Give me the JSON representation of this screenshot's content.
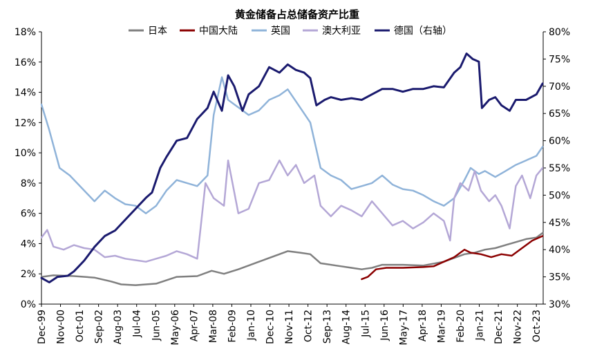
{
  "chart_data": {
    "type": "line",
    "title": "黄金储备占总储备资产比重",
    "x_labels": [
      "Dec-99",
      "Nov-00",
      "Oct-01",
      "Sep-02",
      "Aug-03",
      "Jul-04",
      "Jun-05",
      "May-06",
      "Apr-07",
      "Mar-08",
      "Feb-09",
      "Jan-10",
      "Dec-10",
      "Nov-11",
      "Oct-12",
      "Sep-13",
      "Aug-14",
      "Jul-15",
      "Jun-16",
      "May-17",
      "Apr-18",
      "Mar-19",
      "Feb-20",
      "Jan-21",
      "Dec-21",
      "Nov-22",
      "Oct-23"
    ],
    "x_range": [
      1999.92,
      2024.33
    ],
    "left_axis": {
      "ylim": [
        0,
        18
      ],
      "ticks": [
        0,
        2,
        4,
        6,
        8,
        10,
        12,
        14,
        16,
        18
      ],
      "tick_labels": [
        "0%",
        "2%",
        "4%",
        "6%",
        "8%",
        "10%",
        "12%",
        "14%",
        "16%",
        "18%"
      ]
    },
    "right_axis": {
      "ylim": [
        30,
        80
      ],
      "ticks": [
        30,
        35,
        40,
        45,
        50,
        55,
        60,
        65,
        70,
        75,
        80
      ],
      "tick_labels": [
        "30%",
        "35%",
        "40%",
        "45%",
        "50%",
        "55%",
        "60%",
        "65%",
        "70%",
        "75%",
        "80%"
      ]
    },
    "legend_position": "top-center",
    "series": [
      {
        "name": "日本",
        "axis": "left",
        "color": "#7f7f7f",
        "points": [
          [
            1999.92,
            1.8
          ],
          [
            2000.5,
            1.9
          ],
          [
            2001.5,
            1.85
          ],
          [
            2002.5,
            1.75
          ],
          [
            2003.3,
            1.5
          ],
          [
            2003.8,
            1.3
          ],
          [
            2004.5,
            1.25
          ],
          [
            2005.5,
            1.35
          ],
          [
            2006.5,
            1.8
          ],
          [
            2007.5,
            1.85
          ],
          [
            2008.2,
            2.2
          ],
          [
            2008.8,
            2.0
          ],
          [
            2009.5,
            2.3
          ],
          [
            2010.5,
            2.8
          ],
          [
            2011.5,
            3.3
          ],
          [
            2011.9,
            3.5
          ],
          [
            2012.5,
            3.4
          ],
          [
            2013.0,
            3.3
          ],
          [
            2013.5,
            2.7
          ],
          [
            2014.5,
            2.5
          ],
          [
            2015.5,
            2.3
          ],
          [
            2016.0,
            2.4
          ],
          [
            2016.5,
            2.6
          ],
          [
            2017.5,
            2.6
          ],
          [
            2018.5,
            2.55
          ],
          [
            2019.5,
            2.8
          ],
          [
            2020.5,
            3.3
          ],
          [
            2021.0,
            3.4
          ],
          [
            2021.5,
            3.6
          ],
          [
            2022.0,
            3.7
          ],
          [
            2022.5,
            3.9
          ],
          [
            2023.0,
            4.1
          ],
          [
            2023.5,
            4.3
          ],
          [
            2024.0,
            4.4
          ],
          [
            2024.3,
            4.7
          ]
        ]
      },
      {
        "name": "中国大陆",
        "axis": "left",
        "color": "#8b0000",
        "points": [
          [
            2015.5,
            1.65
          ],
          [
            2015.8,
            1.8
          ],
          [
            2016.2,
            2.3
          ],
          [
            2016.7,
            2.4
          ],
          [
            2017.5,
            2.4
          ],
          [
            2018.5,
            2.45
          ],
          [
            2019.0,
            2.5
          ],
          [
            2019.5,
            2.8
          ],
          [
            2020.0,
            3.1
          ],
          [
            2020.5,
            3.6
          ],
          [
            2020.8,
            3.4
          ],
          [
            2021.3,
            3.3
          ],
          [
            2021.8,
            3.1
          ],
          [
            2022.3,
            3.3
          ],
          [
            2022.8,
            3.2
          ],
          [
            2023.3,
            3.7
          ],
          [
            2023.8,
            4.2
          ],
          [
            2024.3,
            4.5
          ]
        ]
      },
      {
        "name": "英国",
        "axis": "left",
        "color": "#8fb3d9",
        "points": [
          [
            1999.92,
            13.2
          ],
          [
            2000.3,
            11.5
          ],
          [
            2000.8,
            9.0
          ],
          [
            2001.3,
            8.5
          ],
          [
            2002.0,
            7.5
          ],
          [
            2002.5,
            6.8
          ],
          [
            2003.0,
            7.5
          ],
          [
            2003.5,
            7.0
          ],
          [
            2004.0,
            6.6
          ],
          [
            2004.5,
            6.5
          ],
          [
            2005.0,
            6.0
          ],
          [
            2005.5,
            6.5
          ],
          [
            2006.0,
            7.5
          ],
          [
            2006.5,
            8.2
          ],
          [
            2007.0,
            8.0
          ],
          [
            2007.5,
            7.8
          ],
          [
            2008.0,
            8.5
          ],
          [
            2008.3,
            12.5
          ],
          [
            2008.7,
            15.0
          ],
          [
            2009.0,
            13.5
          ],
          [
            2009.5,
            13.0
          ],
          [
            2010.0,
            12.5
          ],
          [
            2010.5,
            12.8
          ],
          [
            2011.0,
            13.5
          ],
          [
            2011.5,
            13.8
          ],
          [
            2011.9,
            14.2
          ],
          [
            2012.5,
            13.0
          ],
          [
            2013.0,
            12.0
          ],
          [
            2013.5,
            9.0
          ],
          [
            2014.0,
            8.5
          ],
          [
            2014.5,
            8.2
          ],
          [
            2015.0,
            7.6
          ],
          [
            2015.5,
            7.8
          ],
          [
            2016.0,
            8.0
          ],
          [
            2016.5,
            8.5
          ],
          [
            2017.0,
            7.9
          ],
          [
            2017.5,
            7.6
          ],
          [
            2018.0,
            7.5
          ],
          [
            2018.5,
            7.2
          ],
          [
            2019.0,
            6.8
          ],
          [
            2019.5,
            6.5
          ],
          [
            2020.0,
            7.0
          ],
          [
            2020.5,
            8.2
          ],
          [
            2020.8,
            9.0
          ],
          [
            2021.2,
            8.6
          ],
          [
            2021.5,
            8.8
          ],
          [
            2022.0,
            8.4
          ],
          [
            2022.5,
            8.8
          ],
          [
            2023.0,
            9.2
          ],
          [
            2023.5,
            9.5
          ],
          [
            2024.0,
            9.8
          ],
          [
            2024.3,
            10.4
          ]
        ]
      },
      {
        "name": "澳大利亚",
        "axis": "left",
        "color": "#b4a7d6",
        "points": [
          [
            1999.92,
            4.4
          ],
          [
            2000.2,
            4.9
          ],
          [
            2000.5,
            3.8
          ],
          [
            2001.0,
            3.6
          ],
          [
            2001.5,
            3.9
          ],
          [
            2002.0,
            3.7
          ],
          [
            2002.5,
            3.6
          ],
          [
            2003.0,
            3.1
          ],
          [
            2003.5,
            3.2
          ],
          [
            2004.0,
            3.0
          ],
          [
            2004.5,
            2.9
          ],
          [
            2005.0,
            2.8
          ],
          [
            2005.5,
            3.0
          ],
          [
            2006.0,
            3.2
          ],
          [
            2006.5,
            3.5
          ],
          [
            2007.0,
            3.3
          ],
          [
            2007.5,
            3.0
          ],
          [
            2007.7,
            5.5
          ],
          [
            2007.9,
            8.0
          ],
          [
            2008.3,
            7.0
          ],
          [
            2008.8,
            6.5
          ],
          [
            2009.0,
            9.5
          ],
          [
            2009.5,
            6.0
          ],
          [
            2010.0,
            6.3
          ],
          [
            2010.5,
            8.0
          ],
          [
            2011.0,
            8.2
          ],
          [
            2011.5,
            9.5
          ],
          [
            2011.9,
            8.5
          ],
          [
            2012.3,
            9.2
          ],
          [
            2012.7,
            8.0
          ],
          [
            2013.2,
            8.5
          ],
          [
            2013.5,
            6.5
          ],
          [
            2014.0,
            5.8
          ],
          [
            2014.5,
            6.5
          ],
          [
            2015.0,
            6.2
          ],
          [
            2015.5,
            5.8
          ],
          [
            2016.0,
            6.8
          ],
          [
            2016.5,
            6.0
          ],
          [
            2017.0,
            5.2
          ],
          [
            2017.5,
            5.5
          ],
          [
            2018.0,
            5.0
          ],
          [
            2018.5,
            5.4
          ],
          [
            2019.0,
            6.0
          ],
          [
            2019.5,
            5.5
          ],
          [
            2019.8,
            4.2
          ],
          [
            2020.0,
            7.0
          ],
          [
            2020.3,
            8.0
          ],
          [
            2020.7,
            7.5
          ],
          [
            2021.0,
            8.8
          ],
          [
            2021.3,
            7.5
          ],
          [
            2021.7,
            6.8
          ],
          [
            2022.0,
            7.2
          ],
          [
            2022.3,
            6.5
          ],
          [
            2022.7,
            5.0
          ],
          [
            2023.0,
            7.8
          ],
          [
            2023.3,
            8.5
          ],
          [
            2023.7,
            7.0
          ],
          [
            2024.0,
            8.5
          ],
          [
            2024.3,
            9.0
          ]
        ]
      },
      {
        "name": "德国（右轴）",
        "axis": "right",
        "color": "#1a1a6e",
        "points": [
          [
            1999.92,
            34.8
          ],
          [
            2000.3,
            34.0
          ],
          [
            2000.7,
            35.0
          ],
          [
            2001.2,
            35.2
          ],
          [
            2001.5,
            36.0
          ],
          [
            2002.0,
            38.0
          ],
          [
            2002.5,
            40.5
          ],
          [
            2003.0,
            42.5
          ],
          [
            2003.5,
            43.5
          ],
          [
            2004.0,
            45.5
          ],
          [
            2004.5,
            47.5
          ],
          [
            2005.0,
            49.5
          ],
          [
            2005.3,
            50.5
          ],
          [
            2005.7,
            55.0
          ],
          [
            2006.0,
            57.0
          ],
          [
            2006.5,
            60.0
          ],
          [
            2007.0,
            60.5
          ],
          [
            2007.5,
            64.0
          ],
          [
            2008.0,
            66.0
          ],
          [
            2008.3,
            69.0
          ],
          [
            2008.7,
            65.5
          ],
          [
            2009.0,
            72.0
          ],
          [
            2009.3,
            70.0
          ],
          [
            2009.7,
            65.5
          ],
          [
            2010.0,
            68.5
          ],
          [
            2010.5,
            70.0
          ],
          [
            2011.0,
            73.5
          ],
          [
            2011.5,
            72.5
          ],
          [
            2011.9,
            74.0
          ],
          [
            2012.3,
            73.0
          ],
          [
            2012.7,
            72.5
          ],
          [
            2013.0,
            71.5
          ],
          [
            2013.3,
            66.5
          ],
          [
            2013.7,
            67.5
          ],
          [
            2014.0,
            68.0
          ],
          [
            2014.5,
            67.5
          ],
          [
            2015.0,
            67.8
          ],
          [
            2015.5,
            67.5
          ],
          [
            2016.0,
            68.5
          ],
          [
            2016.5,
            69.5
          ],
          [
            2017.0,
            69.5
          ],
          [
            2017.5,
            69.0
          ],
          [
            2018.0,
            69.5
          ],
          [
            2018.5,
            69.5
          ],
          [
            2019.0,
            70.0
          ],
          [
            2019.5,
            69.8
          ],
          [
            2020.0,
            72.5
          ],
          [
            2020.3,
            73.5
          ],
          [
            2020.6,
            76.0
          ],
          [
            2020.9,
            75.0
          ],
          [
            2021.2,
            74.5
          ],
          [
            2021.35,
            66.0
          ],
          [
            2021.7,
            67.5
          ],
          [
            2022.0,
            68.0
          ],
          [
            2022.3,
            66.5
          ],
          [
            2022.7,
            65.5
          ],
          [
            2023.0,
            67.5
          ],
          [
            2023.5,
            67.5
          ],
          [
            2024.0,
            68.5
          ],
          [
            2024.3,
            70.5
          ]
        ]
      }
    ]
  }
}
